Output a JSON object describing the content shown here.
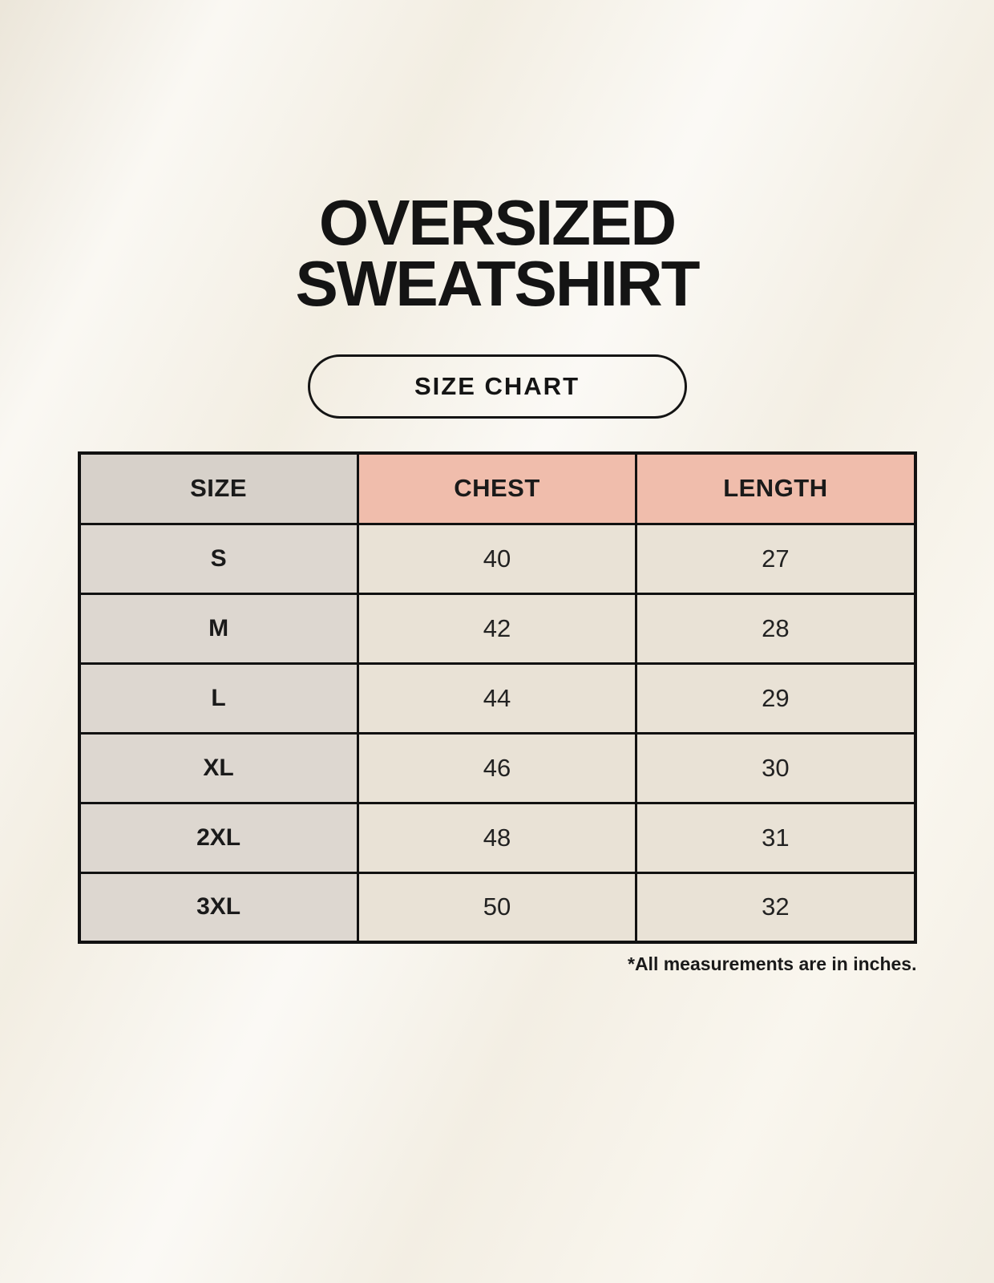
{
  "header": {
    "title_line1": "OVERSIZED",
    "title_line2": "SWEATSHIRT",
    "button_label": "SIZE CHART"
  },
  "footnote": "*All measurements are in inches.",
  "chart_data": {
    "type": "table",
    "title": "OVERSIZED SWEATSHIRT",
    "subtitle": "SIZE CHART",
    "columns": [
      "SIZE",
      "CHEST",
      "LENGTH"
    ],
    "rows": [
      [
        "S",
        "40",
        "27"
      ],
      [
        "M",
        "42",
        "28"
      ],
      [
        "L",
        "44",
        "29"
      ],
      [
        "XL",
        "46",
        "30"
      ],
      [
        "2XL",
        "48",
        "31"
      ],
      [
        "3XL",
        "50",
        "32"
      ]
    ],
    "units": "inches"
  },
  "colors": {
    "background": "#f5f1e7",
    "header_pink": "#f0bdac",
    "header_gray": "#d7d1ca",
    "row_label_gray": "#ddd7d0",
    "cell_cream": "#e9e2d6",
    "border": "#111111",
    "text": "#1a1a1a"
  }
}
